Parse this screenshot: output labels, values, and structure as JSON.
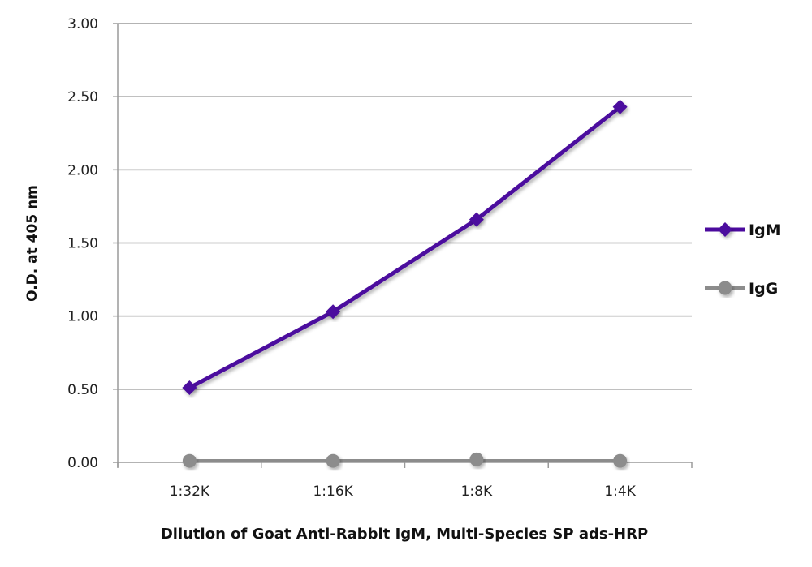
{
  "chart_data": {
    "type": "line",
    "title": "",
    "xlabel": "Dilution of Goat Anti-Rabbit IgM, Multi-Species SP ads-HRP",
    "ylabel": "O.D. at 405 nm",
    "categories": [
      "1:32K",
      "1:16K",
      "1:8K",
      "1:4K"
    ],
    "ylim": [
      0,
      3
    ],
    "yticks": [
      "0.00",
      "0.50",
      "1.00",
      "1.50",
      "2.00",
      "2.50",
      "3.00"
    ],
    "grid": true,
    "legend_position": "right",
    "series": [
      {
        "name": "IgM",
        "values": [
          0.51,
          1.03,
          1.66,
          2.43
        ],
        "color": "#4b0a9e",
        "marker": "diamond"
      },
      {
        "name": "IgG",
        "values": [
          0.01,
          0.01,
          0.02,
          0.01
        ],
        "color": "#8c8c8c",
        "marker": "circle"
      }
    ]
  }
}
